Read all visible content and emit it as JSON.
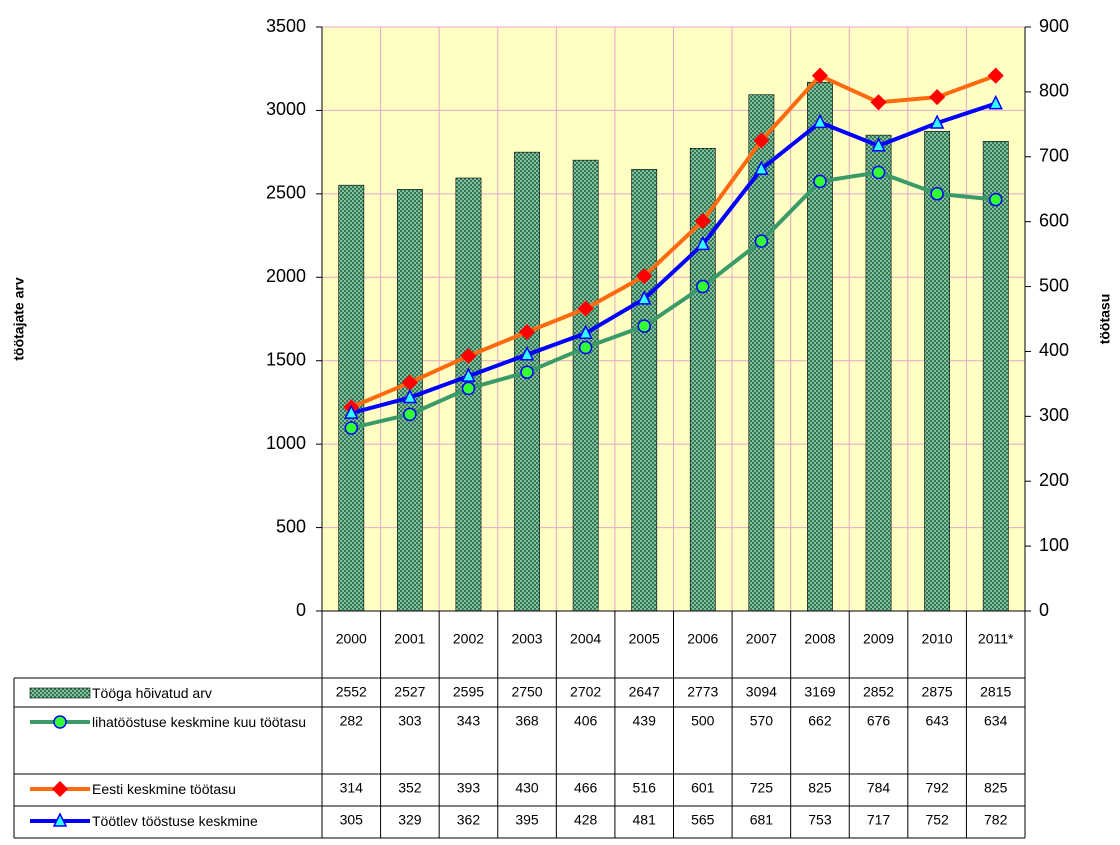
{
  "chart_data": {
    "type": "combo",
    "categories": [
      "2000",
      "2001",
      "2002",
      "2003",
      "2004",
      "2005",
      "2006",
      "2007",
      "2008",
      "2009",
      "2010",
      "2011*"
    ],
    "y_label": "töötajate arv",
    "y2_label": "töötasu",
    "ylim": [
      0,
      3500
    ],
    "yticks": [
      0,
      500,
      1000,
      1500,
      2000,
      2500,
      3000,
      3500
    ],
    "y2lim": [
      0,
      900
    ],
    "y2ticks": [
      0,
      100,
      200,
      300,
      400,
      500,
      600,
      700,
      800,
      900
    ],
    "grid": true,
    "background": "#ffffc4",
    "series": [
      {
        "name": "Tööga hõivatud arv",
        "type": "bar",
        "color": "#2f7a55",
        "axis": "y",
        "values": [
          2552,
          2527,
          2595,
          2750,
          2702,
          2647,
          2773,
          3094,
          3169,
          2852,
          2875,
          2815
        ]
      },
      {
        "name": "lihatööstuse keskmine kuu töötasu",
        "type": "line",
        "color": "#3a9a68",
        "marker": "circle",
        "marker_color": "#33ff33",
        "marker_edge": "#0000ff",
        "axis": "y2",
        "values": [
          282,
          303,
          343,
          368,
          406,
          439,
          500,
          570,
          662,
          676,
          643,
          634
        ]
      },
      {
        "name": "Eesti keskmine töötasu",
        "type": "line",
        "color": "#ff6a10",
        "marker": "diamond",
        "marker_color": "#ff0000",
        "marker_edge": "#ff0000",
        "axis": "y2",
        "values": [
          314,
          352,
          393,
          430,
          466,
          516,
          601,
          725,
          825,
          784,
          792,
          825
        ]
      },
      {
        "name": "Töötlev tööstuse keskmine",
        "type": "line",
        "color": "#0000ff",
        "marker": "triangle",
        "marker_color": "#33ffff",
        "marker_edge": "#0000ff",
        "axis": "y2",
        "values": [
          305,
          329,
          362,
          395,
          428,
          481,
          565,
          681,
          753,
          717,
          752,
          782
        ]
      }
    ]
  }
}
